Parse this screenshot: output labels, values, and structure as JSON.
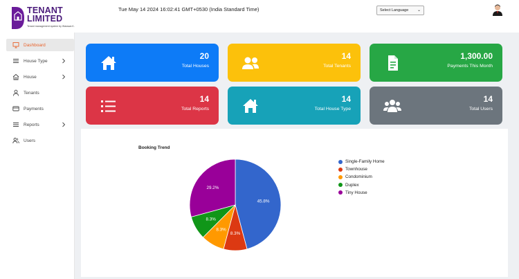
{
  "header": {
    "brand_title": "TENANT LIMITED",
    "brand_subtitle": "Tenant management system by Wasswa K.",
    "datetime": "Tue May 14 2024 16:02:41 GMT+0530 (India Standard Time)",
    "language_select": "Select Language"
  },
  "sidebar": {
    "items": [
      {
        "label": "Dashboard",
        "icon": "monitor-icon",
        "active": true
      },
      {
        "label": "House Type",
        "icon": "menu-icon",
        "submenu": true
      },
      {
        "label": "House",
        "icon": "house-icon",
        "submenu": true
      },
      {
        "label": "Tenants",
        "icon": "person-icon"
      },
      {
        "label": "Payments",
        "icon": "credit-card-icon"
      },
      {
        "label": "Reports",
        "icon": "menu-icon",
        "submenu": true
      },
      {
        "label": "Users",
        "icon": "users-icon"
      }
    ]
  },
  "cards": [
    {
      "value": "20",
      "label": "Total Houses",
      "icon": "house-icon",
      "color": "#0d7bf7"
    },
    {
      "value": "14",
      "label": "Total Tenants",
      "icon": "users-icon",
      "color": "#fcc10b"
    },
    {
      "value": "1,300.00",
      "label": "Payments This Month",
      "icon": "document-icon",
      "color": "#27a745"
    },
    {
      "value": "14",
      "label": "Total Reports",
      "icon": "list-icon",
      "color": "#dc3546"
    },
    {
      "value": "14",
      "label": "Total House Type",
      "icon": "house-icon",
      "color": "#17a2b8"
    },
    {
      "value": "14",
      "label": "Total Users",
      "icon": "users-icon",
      "color": "#6c757d"
    }
  ],
  "chart_data": {
    "type": "pie",
    "title": "Booking Trend",
    "categories": [
      "Single-Family Home",
      "Townhouse",
      "Condominium",
      "Duplex",
      "Tiny House"
    ],
    "values": [
      45.8,
      8.3,
      8.3,
      8.3,
      29.2
    ],
    "data_labels": [
      "45.8%",
      "8.3%",
      "8.3%",
      "8.3%",
      "29.2%"
    ],
    "colors": [
      "#3366cc",
      "#dc3912",
      "#ff9900",
      "#109618",
      "#990099"
    ],
    "legend_position": "right"
  }
}
